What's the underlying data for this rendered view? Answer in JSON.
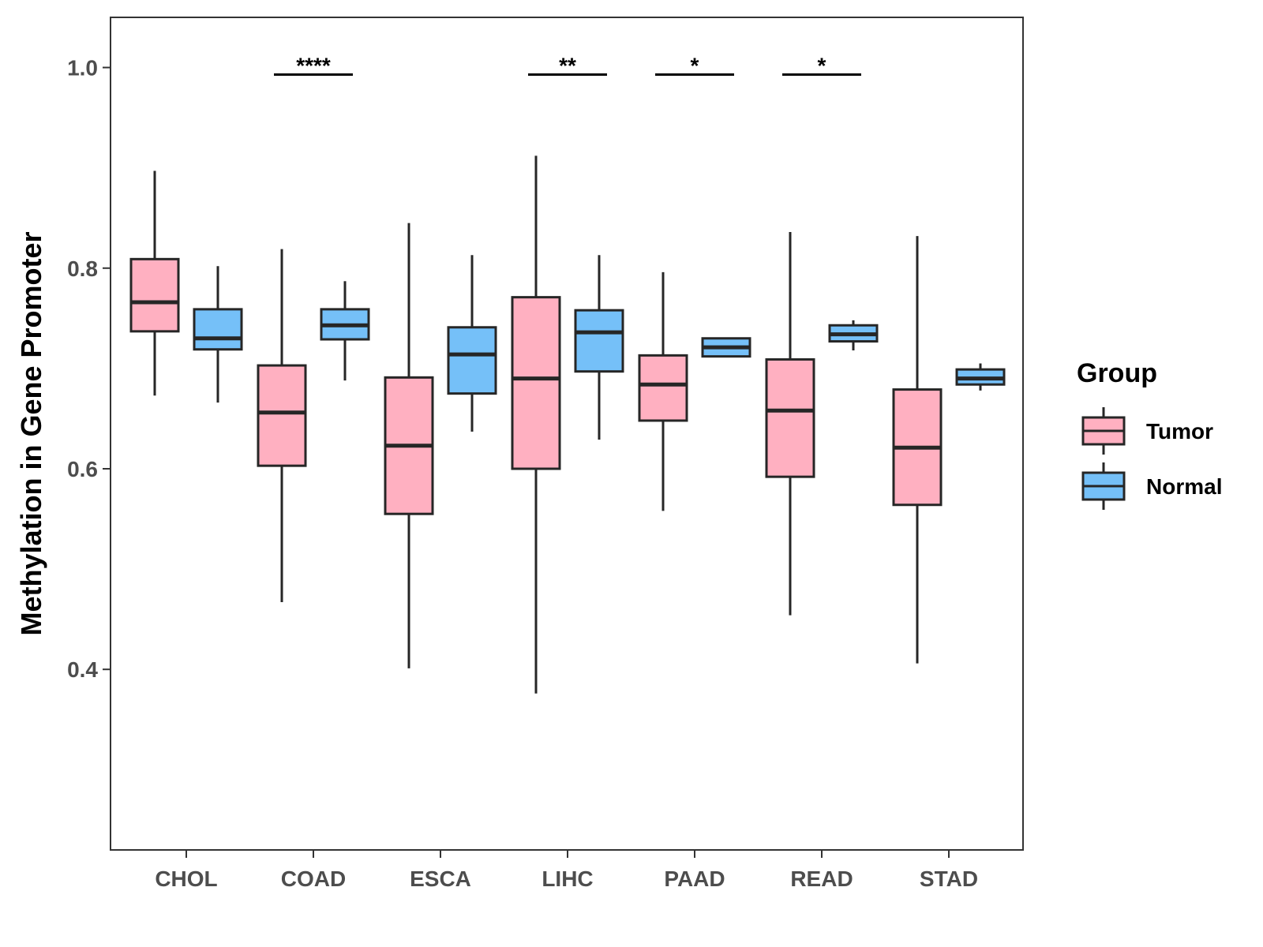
{
  "chart_data": {
    "type": "box",
    "title": "",
    "xlabel": "",
    "ylabel": "Methylation in Gene Promoter",
    "ylim": [
      0.22,
      1.05
    ],
    "yticks": [
      0.4,
      0.6,
      0.8,
      1.0
    ],
    "ytick_labels": [
      "0.4",
      "0.6",
      "0.8",
      "1.0"
    ],
    "categories": [
      "CHOL",
      "COAD",
      "ESCA",
      "LIHC",
      "PAAD",
      "READ",
      "STAD"
    ],
    "legend": {
      "title": "Group",
      "position": "right",
      "entries": [
        {
          "name": "Tumor",
          "color": "#FFB0C1"
        },
        {
          "name": "Normal",
          "color": "#75C0F8"
        }
      ]
    },
    "series": [
      {
        "name": "Tumor",
        "color": "#FFB0C1",
        "boxes": [
          {
            "category": "CHOL",
            "min": 0.673,
            "q1": 0.737,
            "median": 0.766,
            "q3": 0.809,
            "max": 0.897
          },
          {
            "category": "COAD",
            "min": 0.467,
            "q1": 0.603,
            "median": 0.656,
            "q3": 0.703,
            "max": 0.819
          },
          {
            "category": "ESCA",
            "min": 0.401,
            "q1": 0.555,
            "median": 0.623,
            "q3": 0.691,
            "max": 0.845
          },
          {
            "category": "LIHC",
            "min": 0.376,
            "q1": 0.6,
            "median": 0.69,
            "q3": 0.771,
            "max": 0.912
          },
          {
            "category": "PAAD",
            "min": 0.558,
            "q1": 0.648,
            "median": 0.684,
            "q3": 0.713,
            "max": 0.796
          },
          {
            "category": "READ",
            "min": 0.454,
            "q1": 0.592,
            "median": 0.658,
            "q3": 0.709,
            "max": 0.836
          },
          {
            "category": "STAD",
            "min": 0.406,
            "q1": 0.564,
            "median": 0.621,
            "q3": 0.679,
            "max": 0.832
          }
        ]
      },
      {
        "name": "Normal",
        "color": "#75C0F8",
        "boxes": [
          {
            "category": "CHOL",
            "min": 0.666,
            "q1": 0.719,
            "median": 0.73,
            "q3": 0.759,
            "max": 0.802
          },
          {
            "category": "COAD",
            "min": 0.688,
            "q1": 0.729,
            "median": 0.743,
            "q3": 0.759,
            "max": 0.787
          },
          {
            "category": "ESCA",
            "min": 0.637,
            "q1": 0.675,
            "median": 0.714,
            "q3": 0.741,
            "max": 0.813
          },
          {
            "category": "LIHC",
            "min": 0.629,
            "q1": 0.697,
            "median": 0.736,
            "q3": 0.758,
            "max": 0.813
          },
          {
            "category": "PAAD",
            "min": 0.711,
            "q1": 0.712,
            "median": 0.721,
            "q3": 0.73,
            "max": 0.73
          },
          {
            "category": "READ",
            "min": 0.718,
            "q1": 0.727,
            "median": 0.734,
            "q3": 0.743,
            "max": 0.748
          },
          {
            "category": "STAD",
            "min": 0.678,
            "q1": 0.684,
            "median": 0.69,
            "q3": 0.699,
            "max": 0.705
          }
        ]
      }
    ],
    "annotations": [
      {
        "category": "COAD",
        "label": "****",
        "y": 0.993
      },
      {
        "category": "LIHC",
        "label": "**",
        "y": 0.993
      },
      {
        "category": "PAAD",
        "label": "*",
        "y": 0.993
      },
      {
        "category": "READ",
        "label": "*",
        "y": 0.993
      }
    ]
  }
}
